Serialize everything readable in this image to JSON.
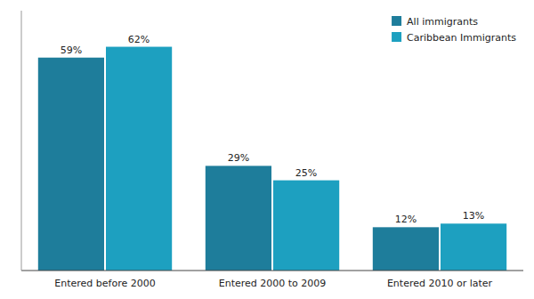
{
  "chart_data": {
    "type": "bar",
    "categories": [
      "Entered before 2000",
      "Entered 2000 to 2009",
      "Entered 2010 or later"
    ],
    "series": [
      {
        "name": "All immigrants",
        "color": "#1e7d9b",
        "values": [
          59,
          29,
          12
        ],
        "value_labels": [
          "59%",
          "29%",
          "12%"
        ]
      },
      {
        "name": "Caribbean Immigrants",
        "color": "#1da0c0",
        "values": [
          62,
          25,
          13
        ],
        "value_labels": [
          "62%",
          "25%",
          "13%"
        ]
      }
    ],
    "ylim": [
      0,
      72
    ],
    "grid": false,
    "legend": "upper right",
    "data_labels": true,
    "tick_labels": "x"
  }
}
